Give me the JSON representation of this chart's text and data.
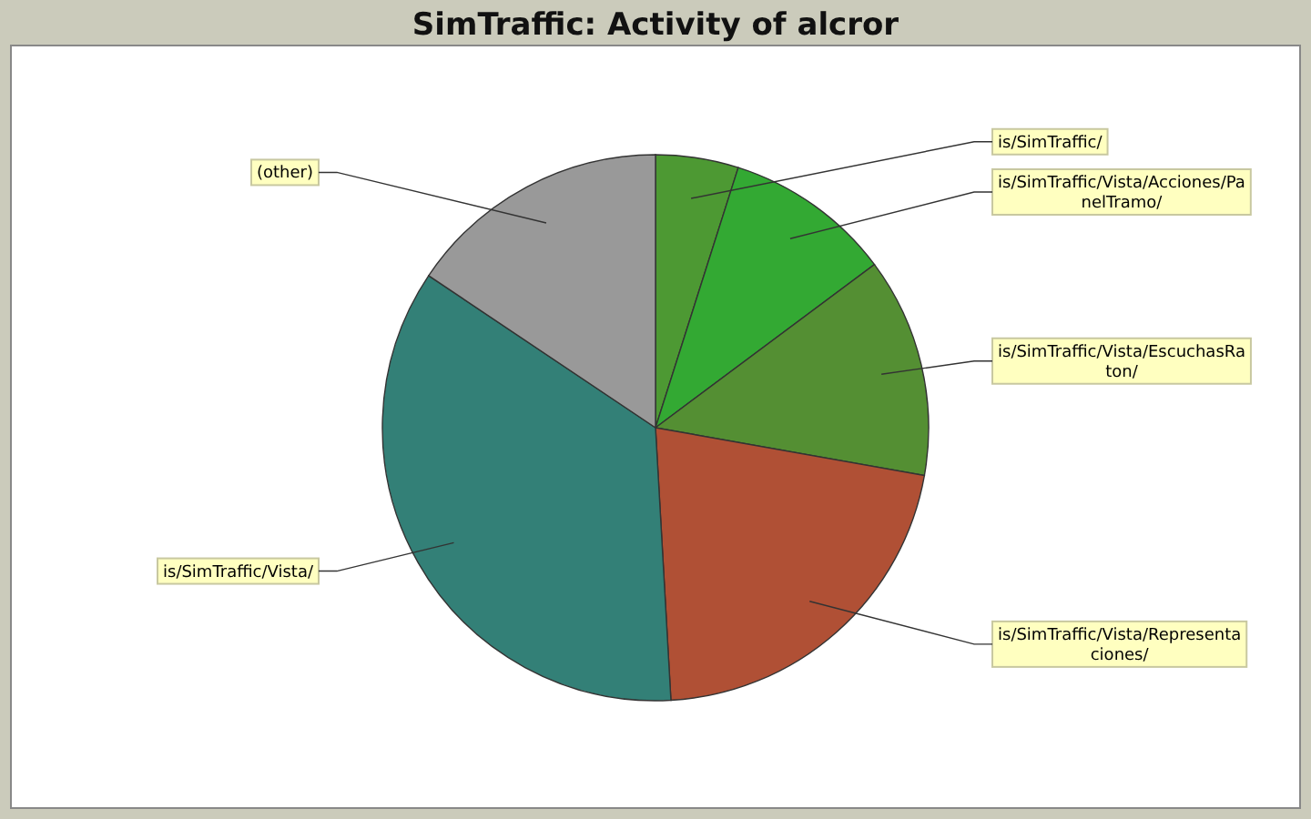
{
  "chart_data": {
    "type": "pie",
    "title": "SimTraffic: Activity of alcror",
    "categories": [
      "is/SimTraffic/",
      "is/SimTraffic/Vista/Acciones/PanelTramo/",
      "is/SimTraffic/Vista/EscuchasRaton/",
      "is/SimTraffic/Vista/Representaciones/",
      "is/SimTraffic/Vista/",
      "(other)"
    ],
    "values": [
      4.9,
      9.9,
      13.0,
      21.3,
      35.3,
      15.6
    ],
    "colors": [
      "#4d9933",
      "#33a933",
      "#548f33",
      "#b05035",
      "#338077",
      "#999999"
    ]
  }
}
